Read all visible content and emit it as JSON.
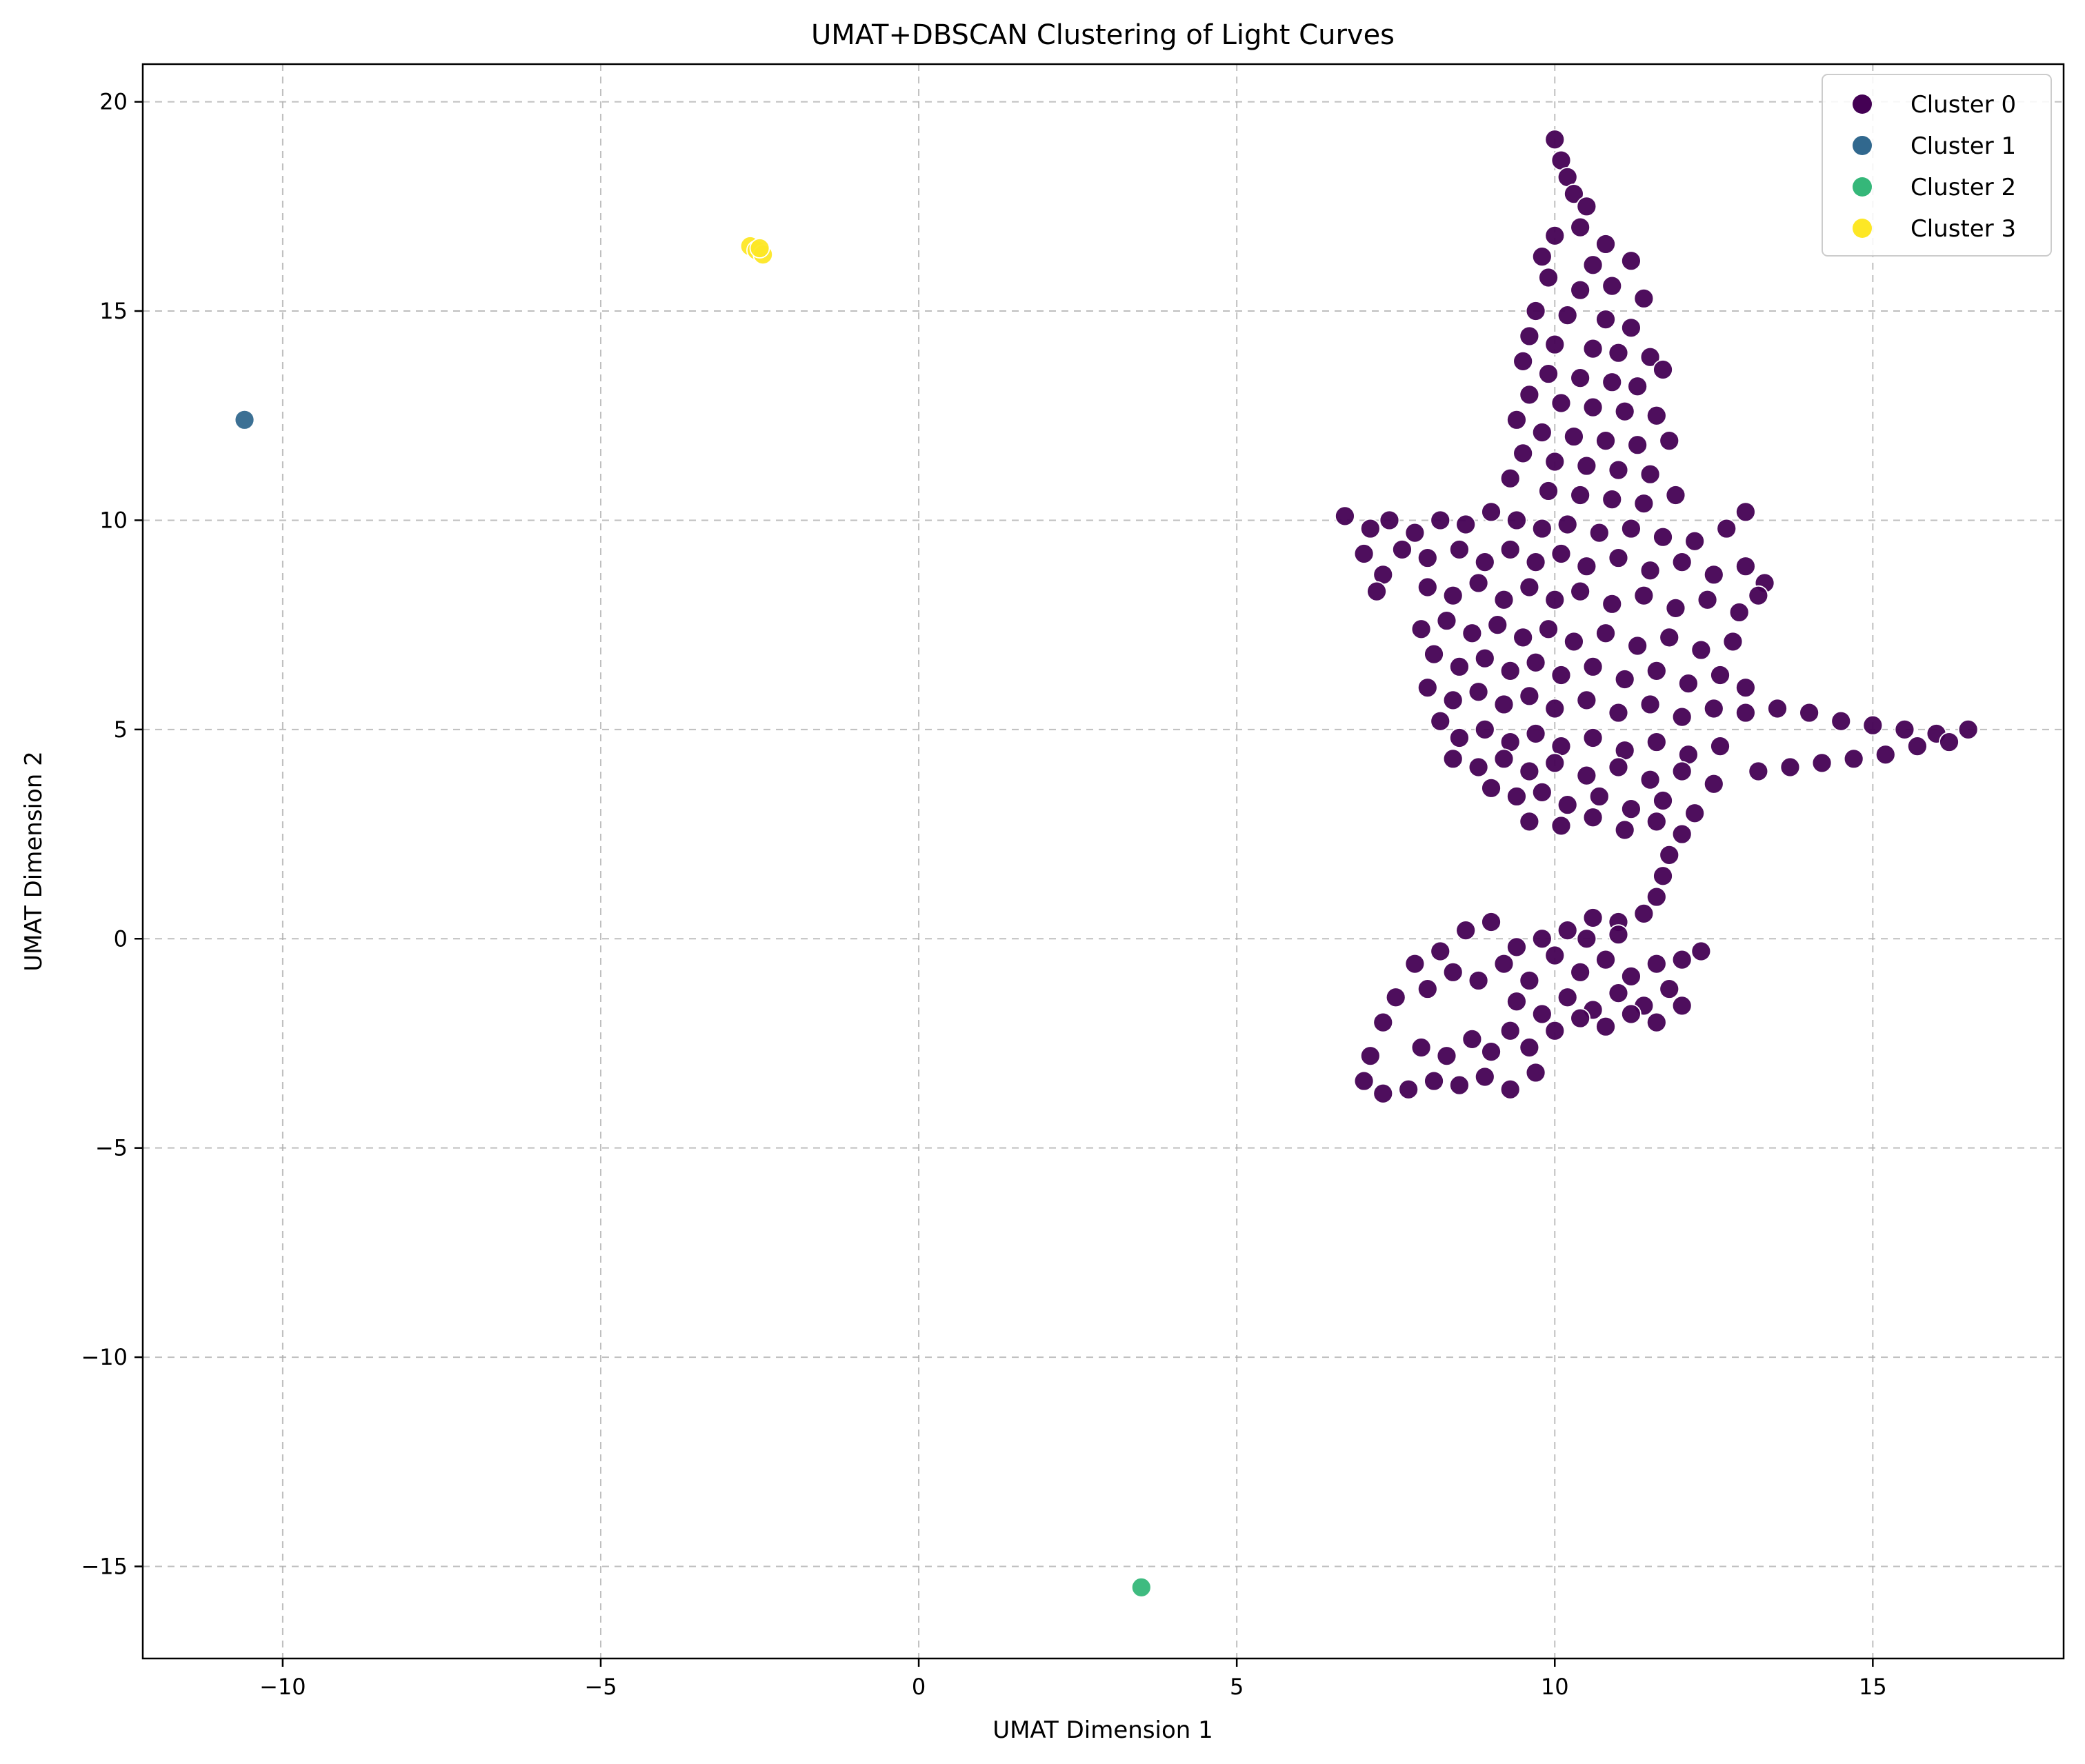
{
  "chart_data": {
    "type": "scatter",
    "title": "UMAT+DBSCAN Clustering of Light Curves",
    "xlabel": "UMAT Dimension 1",
    "ylabel": "UMAT Dimension 2",
    "xlim": [
      -12.2,
      18.0
    ],
    "ylim": [
      -17.2,
      20.9
    ],
    "xticks": [
      -10,
      -5,
      0,
      5,
      10,
      15
    ],
    "yticks": [
      -15,
      -10,
      -5,
      0,
      5,
      10,
      15,
      20
    ],
    "xtick_labels": [
      "−10",
      "−5",
      "0",
      "5",
      "10",
      "15"
    ],
    "ytick_labels": [
      "−15",
      "−10",
      "−5",
      "0",
      "5",
      "10",
      "15",
      "20"
    ],
    "grid": true,
    "legend_position": "top-right",
    "series": [
      {
        "name": "Cluster 0",
        "color": "#440154",
        "points": [
          [
            10.0,
            19.1
          ],
          [
            10.1,
            18.6
          ],
          [
            10.2,
            18.2
          ],
          [
            10.3,
            17.8
          ],
          [
            10.5,
            17.5
          ],
          [
            10.4,
            17.0
          ],
          [
            10.8,
            16.6
          ],
          [
            10.0,
            16.8
          ],
          [
            9.8,
            16.3
          ],
          [
            10.6,
            16.1
          ],
          [
            11.2,
            16.2
          ],
          [
            9.9,
            15.8
          ],
          [
            10.4,
            15.5
          ],
          [
            10.9,
            15.6
          ],
          [
            11.4,
            15.3
          ],
          [
            9.7,
            15.0
          ],
          [
            10.2,
            14.9
          ],
          [
            10.8,
            14.8
          ],
          [
            11.2,
            14.6
          ],
          [
            9.6,
            14.4
          ],
          [
            10.0,
            14.2
          ],
          [
            10.6,
            14.1
          ],
          [
            11.0,
            14.0
          ],
          [
            11.5,
            13.9
          ],
          [
            9.5,
            13.8
          ],
          [
            9.9,
            13.5
          ],
          [
            10.4,
            13.4
          ],
          [
            10.9,
            13.3
          ],
          [
            11.3,
            13.2
          ],
          [
            11.7,
            13.6
          ],
          [
            9.6,
            13.0
          ],
          [
            10.1,
            12.8
          ],
          [
            10.6,
            12.7
          ],
          [
            11.1,
            12.6
          ],
          [
            11.6,
            12.5
          ],
          [
            9.4,
            12.4
          ],
          [
            9.8,
            12.1
          ],
          [
            10.3,
            12.0
          ],
          [
            10.8,
            11.9
          ],
          [
            11.3,
            11.8
          ],
          [
            11.8,
            11.9
          ],
          [
            9.5,
            11.6
          ],
          [
            10.0,
            11.4
          ],
          [
            10.5,
            11.3
          ],
          [
            11.0,
            11.2
          ],
          [
            11.5,
            11.1
          ],
          [
            9.3,
            11.0
          ],
          [
            9.9,
            10.7
          ],
          [
            10.4,
            10.6
          ],
          [
            10.9,
            10.5
          ],
          [
            11.4,
            10.4
          ],
          [
            11.9,
            10.6
          ],
          [
            6.7,
            10.1
          ],
          [
            7.1,
            9.8
          ],
          [
            7.4,
            10.0
          ],
          [
            7.8,
            9.7
          ],
          [
            8.2,
            10.0
          ],
          [
            8.6,
            9.9
          ],
          [
            9.0,
            10.2
          ],
          [
            9.4,
            10.0
          ],
          [
            9.8,
            9.8
          ],
          [
            10.2,
            9.9
          ],
          [
            10.7,
            9.7
          ],
          [
            11.2,
            9.8
          ],
          [
            11.7,
            9.6
          ],
          [
            12.2,
            9.5
          ],
          [
            12.7,
            9.8
          ],
          [
            13.0,
            10.2
          ],
          [
            7.0,
            9.2
          ],
          [
            7.3,
            8.7
          ],
          [
            7.2,
            8.3
          ],
          [
            7.6,
            9.3
          ],
          [
            8.0,
            9.1
          ],
          [
            8.5,
            9.3
          ],
          [
            8.9,
            9.0
          ],
          [
            9.3,
            9.3
          ],
          [
            9.7,
            9.0
          ],
          [
            10.1,
            9.2
          ],
          [
            10.5,
            8.9
          ],
          [
            11.0,
            9.1
          ],
          [
            11.5,
            8.8
          ],
          [
            12.0,
            9.0
          ],
          [
            12.5,
            8.7
          ],
          [
            13.0,
            8.9
          ],
          [
            13.3,
            8.5
          ],
          [
            8.0,
            8.4
          ],
          [
            8.4,
            8.2
          ],
          [
            8.8,
            8.5
          ],
          [
            9.2,
            8.1
          ],
          [
            9.6,
            8.4
          ],
          [
            10.0,
            8.1
          ],
          [
            10.4,
            8.3
          ],
          [
            10.9,
            8.0
          ],
          [
            11.4,
            8.2
          ],
          [
            11.9,
            7.9
          ],
          [
            12.4,
            8.1
          ],
          [
            12.9,
            7.8
          ],
          [
            13.2,
            8.2
          ],
          [
            7.9,
            7.4
          ],
          [
            8.3,
            7.6
          ],
          [
            8.7,
            7.3
          ],
          [
            9.1,
            7.5
          ],
          [
            9.5,
            7.2
          ],
          [
            9.9,
            7.4
          ],
          [
            10.3,
            7.1
          ],
          [
            10.8,
            7.3
          ],
          [
            11.3,
            7.0
          ],
          [
            11.8,
            7.2
          ],
          [
            12.3,
            6.9
          ],
          [
            12.8,
            7.1
          ],
          [
            8.1,
            6.8
          ],
          [
            8.5,
            6.5
          ],
          [
            8.9,
            6.7
          ],
          [
            9.3,
            6.4
          ],
          [
            9.7,
            6.6
          ],
          [
            10.1,
            6.3
          ],
          [
            10.6,
            6.5
          ],
          [
            11.1,
            6.2
          ],
          [
            11.6,
            6.4
          ],
          [
            12.1,
            6.1
          ],
          [
            12.6,
            6.3
          ],
          [
            13.0,
            6.0
          ],
          [
            8.0,
            6.0
          ],
          [
            8.4,
            5.7
          ],
          [
            8.8,
            5.9
          ],
          [
            9.2,
            5.6
          ],
          [
            9.6,
            5.8
          ],
          [
            10.0,
            5.5
          ],
          [
            10.5,
            5.7
          ],
          [
            11.0,
            5.4
          ],
          [
            11.5,
            5.6
          ],
          [
            12.0,
            5.3
          ],
          [
            12.5,
            5.5
          ],
          [
            13.0,
            5.4
          ],
          [
            13.5,
            5.5
          ],
          [
            14.0,
            5.4
          ],
          [
            14.5,
            5.2
          ],
          [
            15.0,
            5.1
          ],
          [
            15.5,
            5.0
          ],
          [
            16.0,
            4.9
          ],
          [
            16.5,
            5.0
          ],
          [
            16.2,
            4.7
          ],
          [
            15.7,
            4.6
          ],
          [
            15.2,
            4.4
          ],
          [
            14.7,
            4.3
          ],
          [
            14.2,
            4.2
          ],
          [
            13.7,
            4.1
          ],
          [
            13.2,
            4.0
          ],
          [
            8.2,
            5.2
          ],
          [
            8.5,
            4.8
          ],
          [
            8.9,
            5.0
          ],
          [
            9.3,
            4.7
          ],
          [
            9.7,
            4.9
          ],
          [
            10.1,
            4.6
          ],
          [
            10.6,
            4.8
          ],
          [
            11.1,
            4.5
          ],
          [
            11.6,
            4.7
          ],
          [
            12.1,
            4.4
          ],
          [
            12.6,
            4.6
          ],
          [
            8.4,
            4.3
          ],
          [
            8.8,
            4.1
          ],
          [
            9.2,
            4.3
          ],
          [
            9.6,
            4.0
          ],
          [
            10.0,
            4.2
          ],
          [
            10.5,
            3.9
          ],
          [
            11.0,
            4.1
          ],
          [
            11.5,
            3.8
          ],
          [
            12.0,
            4.0
          ],
          [
            12.5,
            3.7
          ],
          [
            9.0,
            3.6
          ],
          [
            9.4,
            3.4
          ],
          [
            9.8,
            3.5
          ],
          [
            10.2,
            3.2
          ],
          [
            10.7,
            3.4
          ],
          [
            11.2,
            3.1
          ],
          [
            11.7,
            3.3
          ],
          [
            12.2,
            3.0
          ],
          [
            9.6,
            2.8
          ],
          [
            10.1,
            2.7
          ],
          [
            10.6,
            2.9
          ],
          [
            11.1,
            2.6
          ],
          [
            11.6,
            2.8
          ],
          [
            12.0,
            2.5
          ],
          [
            11.8,
            2.0
          ],
          [
            11.7,
            1.5
          ],
          [
            11.6,
            1.0
          ],
          [
            11.4,
            0.6
          ],
          [
            11.0,
            0.4
          ],
          [
            10.6,
            0.5
          ],
          [
            10.2,
            0.2
          ],
          [
            9.8,
            0.0
          ],
          [
            9.4,
            -0.2
          ],
          [
            9.0,
            0.4
          ],
          [
            8.6,
            0.2
          ],
          [
            8.2,
            -0.3
          ],
          [
            7.8,
            -0.6
          ],
          [
            7.5,
            -1.4
          ],
          [
            7.3,
            -2.0
          ],
          [
            7.1,
            -2.8
          ],
          [
            7.0,
            -3.4
          ],
          [
            7.3,
            -3.7
          ],
          [
            7.7,
            -3.6
          ],
          [
            8.1,
            -3.4
          ],
          [
            8.5,
            -3.5
          ],
          [
            8.9,
            -3.3
          ],
          [
            9.3,
            -3.6
          ],
          [
            9.7,
            -3.2
          ],
          [
            9.6,
            -2.6
          ],
          [
            9.3,
            -2.2
          ],
          [
            9.0,
            -2.7
          ],
          [
            8.7,
            -2.4
          ],
          [
            8.3,
            -2.8
          ],
          [
            7.9,
            -2.6
          ],
          [
            8.0,
            -1.2
          ],
          [
            8.4,
            -0.8
          ],
          [
            8.8,
            -1.0
          ],
          [
            9.2,
            -0.6
          ],
          [
            9.6,
            -1.0
          ],
          [
            10.0,
            -0.4
          ],
          [
            10.4,
            -0.8
          ],
          [
            10.8,
            -0.5
          ],
          [
            11.2,
            -0.9
          ],
          [
            11.6,
            -0.6
          ],
          [
            12.0,
            -0.5
          ],
          [
            12.3,
            -0.3
          ],
          [
            9.4,
            -1.5
          ],
          [
            9.8,
            -1.8
          ],
          [
            10.2,
            -1.4
          ],
          [
            10.6,
            -1.7
          ],
          [
            11.0,
            -1.3
          ],
          [
            11.4,
            -1.6
          ],
          [
            11.8,
            -1.2
          ],
          [
            10.0,
            -2.2
          ],
          [
            10.4,
            -1.9
          ],
          [
            10.8,
            -2.1
          ],
          [
            11.2,
            -1.8
          ],
          [
            11.6,
            -2.0
          ],
          [
            12.0,
            -1.6
          ],
          [
            10.5,
            0.0
          ],
          [
            11.0,
            0.1
          ]
        ]
      },
      {
        "name": "Cluster 1",
        "color": "#31688e",
        "points": [
          [
            -10.6,
            12.4
          ]
        ]
      },
      {
        "name": "Cluster 2",
        "color": "#35b779",
        "points": [
          [
            3.5,
            -15.5
          ]
        ]
      },
      {
        "name": "Cluster 3",
        "color": "#fde725",
        "points": [
          [
            -2.65,
            16.55
          ],
          [
            -2.55,
            16.45
          ],
          [
            -2.45,
            16.35
          ],
          [
            -2.5,
            16.5
          ]
        ]
      }
    ]
  }
}
